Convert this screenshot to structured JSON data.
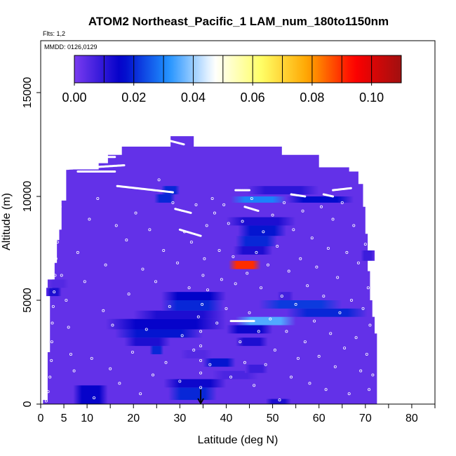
{
  "chart_data": {
    "type": "heatmap",
    "title": "ATOM2 Northeast_Pacific_1 LAM_num_180to1150nm",
    "flights_note": "Flts: 1,2",
    "date_note": "MMDD: 0126,0129",
    "xlabel": "Latitude (deg N)",
    "ylabel": "Altitude (m)",
    "xlim": [
      0,
      85
    ],
    "ylim": [
      0,
      17500
    ],
    "x_ticks": [
      0,
      5,
      10,
      20,
      30,
      40,
      50,
      60,
      70,
      80
    ],
    "x_minor_ticks": [
      15,
      25,
      35,
      45,
      55,
      65,
      75,
      85
    ],
    "y_ticks": [
      0,
      5000,
      10000,
      15000
    ],
    "colorbar": {
      "range": [
        0,
        0.11
      ],
      "ticks": [
        "0.00",
        "0.02",
        "0.04",
        "0.06",
        "0.08",
        "0.10"
      ],
      "tick_values": [
        0,
        0.02,
        0.04,
        0.06,
        0.08,
        0.1
      ],
      "stops": [
        "#7a3cf0",
        "#0000c8",
        "#1e90ff",
        "#ffffff",
        "#ffff66",
        "#ffa500",
        "#ff0000",
        "#a01010"
      ]
    },
    "background_value": 0.003,
    "coverage_profile": [
      [
        0.5,
        0,
        200
      ],
      [
        1.5,
        0,
        2500
      ],
      [
        2.0,
        0,
        5300
      ],
      [
        2.5,
        0,
        6000
      ],
      [
        3.0,
        0,
        6800
      ],
      [
        3.5,
        0,
        7900
      ],
      [
        4.0,
        0,
        8400
      ],
      [
        4.5,
        0,
        9800
      ],
      [
        5.5,
        0,
        11300
      ],
      [
        10.0,
        0,
        11300
      ],
      [
        12.5,
        0,
        11600
      ],
      [
        14.5,
        0,
        12000
      ],
      [
        17.5,
        0,
        12400
      ],
      [
        27.0,
        0,
        12400
      ],
      [
        28.0,
        0,
        12900
      ],
      [
        32.0,
        0,
        12900
      ],
      [
        33.0,
        0,
        12400
      ],
      [
        41.0,
        0,
        12400
      ],
      [
        52.0,
        0,
        12000
      ],
      [
        60.0,
        0,
        11400
      ],
      [
        66.5,
        0,
        11200
      ],
      [
        68.5,
        0,
        10600
      ],
      [
        69.5,
        0,
        9500
      ],
      [
        70.0,
        0,
        8200
      ],
      [
        70.5,
        0,
        6400
      ],
      [
        71.0,
        0,
        5000
      ],
      [
        71.5,
        0,
        4200
      ],
      [
        72.0,
        0,
        3400
      ]
    ],
    "patches": [
      [
        1.2,
        4.5,
        5200,
        5600,
        0.012
      ],
      [
        1.5,
        6.0,
        5600,
        6000,
        0.005
      ],
      [
        7.0,
        14.5,
        0,
        900,
        0.015
      ],
      [
        24.5,
        29.0,
        9700,
        10100,
        0.02
      ],
      [
        26.0,
        30.0,
        10100,
        10500,
        0.02
      ],
      [
        23.5,
        26.5,
        2400,
        2800,
        0.02
      ],
      [
        18.0,
        28.0,
        2800,
        3200,
        0.012
      ],
      [
        16.0,
        35.0,
        3200,
        3600,
        0.018
      ],
      [
        14.0,
        40.0,
        3600,
        4100,
        0.015
      ],
      [
        20.0,
        40.0,
        4100,
        4500,
        0.012
      ],
      [
        26.0,
        39.5,
        4500,
        5000,
        0.02
      ],
      [
        26.0,
        40.0,
        5000,
        5400,
        0.016
      ],
      [
        27.5,
        38.0,
        200,
        800,
        0.02
      ],
      [
        26.5,
        40.0,
        800,
        1200,
        0.014
      ],
      [
        35.0,
        42.0,
        1800,
        2200,
        0.018
      ],
      [
        37.0,
        47.0,
        1200,
        1600,
        0.006
      ],
      [
        30.0,
        37.0,
        2200,
        2600,
        0.005
      ],
      [
        40.5,
        47.5,
        6500,
        6900,
        0.09
      ],
      [
        41.5,
        50.0,
        7200,
        7600,
        0.012
      ],
      [
        42.0,
        51.0,
        7600,
        8100,
        0.02
      ],
      [
        42.5,
        53.0,
        8100,
        8600,
        0.018
      ],
      [
        40.0,
        55.0,
        8600,
        9000,
        0.012
      ],
      [
        41.0,
        53.0,
        9700,
        10000,
        0.03
      ],
      [
        53.0,
        67.5,
        9700,
        10000,
        0.017
      ],
      [
        44.5,
        60.0,
        10100,
        10500,
        0.01
      ],
      [
        53.0,
        70.5,
        4200,
        4600,
        0.02
      ],
      [
        47.0,
        65.0,
        4600,
        5000,
        0.022
      ],
      [
        42.0,
        55.0,
        3800,
        4200,
        0.035
      ],
      [
        40.0,
        50.0,
        3400,
        3800,
        0.014
      ],
      [
        42.0,
        49.0,
        2800,
        3200,
        0.012
      ],
      [
        48.5,
        54.0,
        0,
        250,
        0.012
      ],
      [
        51.0,
        54.5,
        5000,
        5400,
        0.007
      ],
      [
        44.0,
        49.0,
        1500,
        1900,
        0.008
      ],
      [
        69.0,
        72.0,
        6900,
        7400,
        0.008
      ]
    ],
    "flight_tracks": [
      [
        [
          3.5,
          11300
        ],
        [
          18.0,
          11500
        ]
      ],
      [
        [
          8.0,
          11200
        ],
        [
          16.0,
          11200
        ]
      ],
      [
        [
          17.0,
          12500
        ],
        [
          20.5,
          12500
        ]
      ],
      [
        [
          13.0,
          11900
        ],
        [
          16.0,
          11900
        ]
      ],
      [
        [
          27.5,
          12700
        ],
        [
          31.0,
          12500
        ]
      ],
      [
        [
          16.5,
          10500
        ],
        [
          28.5,
          10200
        ]
      ],
      [
        [
          29.0,
          9400
        ],
        [
          32.5,
          9200
        ]
      ],
      [
        [
          30.0,
          8400
        ],
        [
          34.5,
          8100
        ]
      ],
      [
        [
          42.0,
          10300
        ],
        [
          45.0,
          10300
        ]
      ],
      [
        [
          54.0,
          10100
        ],
        [
          57.0,
          10000
        ]
      ],
      [
        [
          63.0,
          10300
        ],
        [
          67.0,
          10400
        ]
      ],
      [
        [
          61.0,
          10100
        ],
        [
          63.0,
          10000
        ]
      ],
      [
        [
          44.0,
          9500
        ],
        [
          47.0,
          9300
        ]
      ],
      [
        [
          41.0,
          4000
        ],
        [
          46.0,
          4000
        ]
      ]
    ],
    "scatter_points": [
      [
        1.2,
        150
      ],
      [
        1.6,
        600
      ],
      [
        2.0,
        1300
      ],
      [
        2.3,
        2100
      ],
      [
        2.4,
        3000
      ],
      [
        2.5,
        3900
      ],
      [
        2.7,
        4700
      ],
      [
        2.9,
        5400
      ],
      [
        3.1,
        6200
      ],
      [
        3.3,
        7000
      ],
      [
        3.6,
        7800
      ],
      [
        3.9,
        8700
      ],
      [
        4.2,
        9500
      ],
      [
        4.6,
        10200
      ],
      [
        5.0,
        10900
      ],
      [
        4.5,
        6200
      ],
      [
        5.5,
        5000
      ],
      [
        6.0,
        3700
      ],
      [
        6.5,
        2400
      ],
      [
        7.2,
        1600
      ],
      [
        8.0,
        7300
      ],
      [
        9.5,
        5900
      ],
      [
        10.5,
        8900
      ],
      [
        11.0,
        2200
      ],
      [
        11.5,
        300
      ],
      [
        12.3,
        9900
      ],
      [
        13.5,
        4500
      ],
      [
        14.0,
        6700
      ],
      [
        15.0,
        1700
      ],
      [
        15.5,
        3800
      ],
      [
        16.3,
        8600
      ],
      [
        17.0,
        1000
      ],
      [
        18.5,
        7900
      ],
      [
        19.0,
        5300
      ],
      [
        19.8,
        2500
      ],
      [
        20.5,
        9200
      ],
      [
        21.5,
        500
      ],
      [
        22.0,
        6500
      ],
      [
        22.8,
        3600
      ],
      [
        23.5,
        8400
      ],
      [
        24.2,
        1400
      ],
      [
        24.8,
        5900
      ],
      [
        25.5,
        10800
      ],
      [
        26.5,
        7400
      ],
      [
        27.0,
        2000
      ],
      [
        27.8,
        4700
      ],
      [
        28.5,
        9700
      ],
      [
        29.5,
        6800
      ],
      [
        30.0,
        1100
      ],
      [
        30.5,
        3300
      ],
      [
        31.0,
        8300
      ],
      [
        32.0,
        5600
      ],
      [
        32.5,
        7800
      ],
      [
        33.0,
        2600
      ],
      [
        33.5,
        9600
      ],
      [
        34.0,
        4200
      ],
      [
        34.5,
        3500
      ],
      [
        34.5,
        2800
      ],
      [
        34.5,
        2100
      ],
      [
        34.5,
        1500
      ],
      [
        34.5,
        800
      ],
      [
        34.8,
        4800
      ],
      [
        35.0,
        6200
      ],
      [
        35.3,
        7000
      ],
      [
        35.8,
        8600
      ],
      [
        36.0,
        5500
      ],
      [
        36.5,
        1900
      ],
      [
        37.0,
        9900
      ],
      [
        37.5,
        9200
      ],
      [
        38.0,
        3900
      ],
      [
        38.5,
        7400
      ],
      [
        39.0,
        6000
      ],
      [
        39.5,
        9600
      ],
      [
        40.0,
        4600
      ],
      [
        40.5,
        8700
      ],
      [
        41.0,
        1300
      ],
      [
        41.5,
        7100
      ],
      [
        42.0,
        5800
      ],
      [
        43.0,
        3000
      ],
      [
        43.5,
        8800
      ],
      [
        44.0,
        2000
      ],
      [
        44.5,
        6300
      ],
      [
        45.0,
        4400
      ],
      [
        45.5,
        9900
      ],
      [
        46.0,
        900
      ],
      [
        46.5,
        7300
      ],
      [
        47.0,
        3500
      ],
      [
        47.5,
        5600
      ],
      [
        48.0,
        8300
      ],
      [
        48.5,
        1900
      ],
      [
        49.0,
        6700
      ],
      [
        49.5,
        4100
      ],
      [
        50.0,
        9100
      ],
      [
        50.5,
        2600
      ],
      [
        51.0,
        7600
      ],
      [
        51.5,
        200
      ],
      [
        52.0,
        5200
      ],
      [
        52.5,
        9700
      ],
      [
        53.0,
        3500
      ],
      [
        53.5,
        6400
      ],
      [
        54.0,
        1300
      ],
      [
        54.5,
        8400
      ],
      [
        55.0,
        4800
      ],
      [
        55.5,
        2200
      ],
      [
        56.0,
        7000
      ],
      [
        56.5,
        9300
      ],
      [
        57.0,
        3000
      ],
      [
        57.5,
        5700
      ],
      [
        58.0,
        1000
      ],
      [
        58.5,
        8000
      ],
      [
        59.0,
        4000
      ],
      [
        59.5,
        6600
      ],
      [
        60.0,
        2300
      ],
      [
        60.5,
        9500
      ],
      [
        61.0,
        5200
      ],
      [
        61.5,
        700
      ],
      [
        62.0,
        7500
      ],
      [
        62.5,
        3400
      ],
      [
        63.0,
        8900
      ],
      [
        63.5,
        1800
      ],
      [
        64.0,
        6100
      ],
      [
        64.5,
        4400
      ],
      [
        65.0,
        9700
      ],
      [
        65.5,
        2700
      ],
      [
        66.0,
        7300
      ],
      [
        66.5,
        500
      ],
      [
        67.0,
        5000
      ],
      [
        67.5,
        8600
      ],
      [
        68.0,
        3200
      ],
      [
        68.5,
        6800
      ],
      [
        69.0,
        1600
      ],
      [
        69.5,
        4600
      ],
      [
        70.0,
        7700
      ],
      [
        70.3,
        2400
      ],
      [
        70.6,
        5600
      ],
      [
        70.8,
        700
      ],
      [
        71.0,
        3800
      ],
      [
        71.3,
        6000
      ],
      [
        71.6,
        1400
      ]
    ],
    "annotation_arrow": {
      "x": 34.5,
      "y_from": 500,
      "y_to": 0
    }
  }
}
